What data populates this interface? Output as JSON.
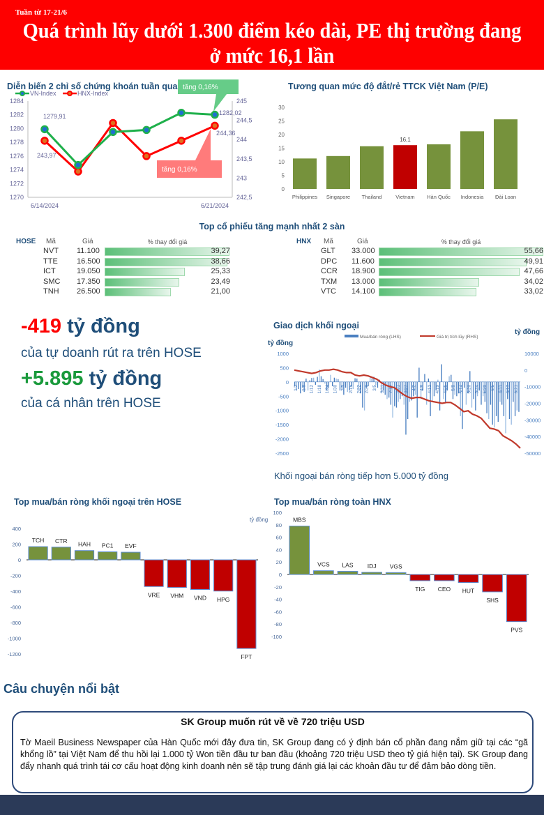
{
  "header": {
    "week": "Tuần từ 17-21/6",
    "title": "Quá trình lũy dưới 1.300 điểm kéo dài, PE thị trường đang ở mức 16,1 lần"
  },
  "colors": {
    "header": "#fe0000",
    "green": "#76923c",
    "red": "#c00000",
    "navy": "#1f4e79",
    "vn_line": "#1fb04b",
    "hnx_line": "#ff0000"
  },
  "chart_data": [
    {
      "type": "line",
      "title": "Diễn biến 2 chỉ số chứng khoán tuần qua",
      "x": [
        "6/14/2024",
        "",
        "",
        "",
        "",
        "6/21/2024"
      ],
      "series": [
        {
          "name": "VN-Index",
          "axis": "left",
          "values": [
            1279.91,
            1274.7,
            1279.5,
            1279.8,
            1282.3,
            1282.02
          ]
        },
        {
          "name": "HNX-Index",
          "axis": "right",
          "values": [
            243.97,
            243.17,
            244.43,
            243.57,
            243.97,
            244.36
          ]
        }
      ],
      "ylim_left": [
        1270,
        1284
      ],
      "yticks_left": [
        "1270",
        "1272",
        "1274",
        "1276",
        "1278",
        "1280",
        "1282",
        "1284"
      ],
      "ylim_right": [
        242.5,
        245
      ],
      "yticks_right": [
        "242,5",
        "243",
        "243,5",
        "244",
        "244,5",
        "245"
      ],
      "labels": {
        "vn_first": "1279,91",
        "vn_last": "1282,02",
        "hnx_first": "243,97",
        "hnx_last": "244,36"
      },
      "callouts": {
        "vn": "tăng 0,16%",
        "hnx": "tăng 0,16%"
      },
      "legend": "top-left"
    },
    {
      "type": "bar",
      "title": "Tương quan mức độ đắt/rẻ TTCK Việt Nam (P/E)",
      "categories": [
        "Philippines",
        "Singapore",
        "Thailand",
        "Vietnam",
        "Hàn Quốc",
        "Indonesia",
        "Đài Loan"
      ],
      "values": [
        11.2,
        12.1,
        15.7,
        16.1,
        16.4,
        21.2,
        25.6
      ],
      "highlight": "Vietnam",
      "highlight_label": "16,1",
      "ylim": [
        0,
        30
      ],
      "yticks": [
        "0",
        "5",
        "10",
        "15",
        "20",
        "25",
        "30"
      ]
    },
    {
      "type": "table",
      "title": "Top cổ phiếu tăng mạnh nhất 2 sàn",
      "headers": [
        "Mã",
        "Giá",
        "% thay đổi giá"
      ],
      "hose": {
        "label": "HOSE",
        "rows": [
          [
            "NVT",
            "11.100",
            "39,27",
            39.27
          ],
          [
            "TTE",
            "16.500",
            "38,66",
            38.66
          ],
          [
            "ICT",
            "19.050",
            "25,33",
            25.33
          ],
          [
            "SMC",
            "17.350",
            "23,49",
            23.49
          ],
          [
            "TNH",
            "26.500",
            "21,00",
            21.0
          ]
        ]
      },
      "hnx": {
        "label": "HNX",
        "rows": [
          [
            "GLT",
            "33.000",
            "55,66",
            55.66
          ],
          [
            "DPC",
            "11.600",
            "49,91",
            49.91
          ],
          [
            "CCR",
            "18.900",
            "47,66",
            47.66
          ],
          [
            "TXM",
            "13.000",
            "34,02",
            34.02
          ],
          [
            "VTC",
            "14.100",
            "33,02",
            33.02
          ]
        ]
      }
    },
    {
      "type": "bar+line",
      "title": "Giao dịch khối ngoại",
      "ylabel_left": "tỷ đồng",
      "ylabel_right": "tỷ đồng",
      "legend": [
        "Mua/bán ròng (LHS)",
        "Giá trị tích lũy (RHS)"
      ],
      "ylim_left": [
        -2500,
        1000
      ],
      "yticks_left": [
        "1000",
        "500",
        "0",
        "-500",
        "-1000",
        "-1500",
        "-2000",
        "-2500"
      ],
      "ylim_right": [
        -50000,
        10000
      ],
      "yticks_right": [
        "10000",
        "0",
        "-10000",
        "-20000",
        "-30000",
        "-40000",
        "-50000"
      ],
      "date_ticks": [
        "1/2",
        "1/8",
        "1/12",
        "1/18",
        "1/24",
        "1/30",
        "2/5",
        "2/16",
        "2/22",
        "2/28",
        "3/5",
        "3/11",
        "3/15",
        "3/21",
        "3/27",
        "4/2",
        "4/8",
        "4/12",
        "4/19",
        "4/25",
        "5/8",
        "5/14",
        "5/20",
        "5/24",
        "5/30",
        "6/5",
        "6/11",
        "6/17",
        "6/21"
      ],
      "daily": [
        -150,
        -300,
        -250,
        -400,
        -200,
        -350,
        120,
        -300,
        60,
        140,
        150,
        -100,
        180,
        440,
        200,
        100,
        -60,
        -300,
        -200,
        250,
        -150,
        150,
        120,
        100,
        -300,
        -250,
        -450,
        -200,
        -350,
        -300,
        -150,
        -250,
        130,
        120,
        -300,
        -400,
        -900,
        -1000,
        -200,
        -150,
        200,
        120,
        180,
        -100,
        -200,
        80,
        -400,
        -300,
        -450,
        -600,
        -550,
        -800,
        -1250,
        -850,
        -900,
        -700,
        -600,
        -500,
        -800,
        -1850,
        -1300,
        -700,
        -650,
        -500,
        -450,
        -1250,
        500,
        -600,
        -300,
        280,
        -800,
        120,
        -1200,
        -700,
        -500,
        -300,
        80,
        -1000,
        620,
        -600,
        -700,
        -300,
        200,
        250,
        -600,
        -450,
        -500,
        -400,
        -1200,
        -1650,
        -200,
        -800,
        -400,
        380,
        -900,
        -600,
        -1000,
        -500,
        -300,
        -800,
        -500,
        -700,
        -1100,
        -1300,
        -800,
        -1500,
        -1600,
        -1200,
        -1400,
        -700,
        -800,
        -1200,
        -1800,
        -600,
        -1300,
        -1500,
        -700,
        -1200,
        -1000,
        -1050
      ],
      "cumulative": [
        0,
        -500,
        -1000,
        -1500,
        -2000,
        -1500,
        -500,
        0,
        0,
        500,
        0,
        -1000,
        -1500,
        -1500,
        -3000,
        -3500,
        -3000,
        -3500,
        -4500,
        -5500,
        -7500,
        -9000,
        -10000,
        -10500,
        -12500,
        -14500,
        -16000,
        -17000,
        -16500,
        -16500,
        -17500,
        -18500,
        -19000,
        -19500,
        -20000,
        -19500,
        -19500,
        -21000,
        -23000,
        -25000,
        -24500,
        -26500,
        -27500,
        -29000,
        -32000,
        -35000,
        -35500,
        -36500,
        -39500,
        -41000,
        -42500,
        -44500,
        -47000
      ],
      "note": "Khối ngoại bán ròng tiếp hơn 5.000 tỷ đồng"
    },
    {
      "type": "bar",
      "title": "Top mua/bán ròng khối ngoại trên HOSE",
      "unit": "tỷ đồng",
      "categories": [
        "TCH",
        "CTR",
        "HAH",
        "PC1",
        "EVF",
        "VRE",
        "VHM",
        "VND",
        "HPG",
        "FPT"
      ],
      "values": [
        168,
        162,
        118,
        102,
        97,
        -340,
        -352,
        -378,
        -398,
        -1130
      ],
      "ylim": [
        -1200,
        400
      ],
      "yticks": [
        "400",
        "200",
        "0",
        "-200",
        "-400",
        "-600",
        "-800",
        "-1000",
        "-1200"
      ]
    },
    {
      "type": "bar",
      "title": "Top mua/bán ròng toàn HNX",
      "categories": [
        "MBS",
        "VCS",
        "LAS",
        "IDJ",
        "VGS",
        "TIG",
        "CEO",
        "HUT",
        "SHS",
        "PVS"
      ],
      "values": [
        78,
        6,
        5,
        3.5,
        3,
        -10,
        -10,
        -13,
        -28,
        -76
      ],
      "ylim": [
        -100,
        100
      ],
      "yticks": [
        "100",
        "80",
        "60",
        "40",
        "20",
        "0",
        "-20",
        "-40",
        "-60",
        "-80",
        "-100"
      ]
    }
  ],
  "highlights": {
    "prop_value": "-419",
    "prop_unit": " tỷ đồng",
    "prop_desc": "của tự doanh rút ra trên HOSE",
    "retail_value": "+5.895",
    "retail_unit": " tỷ đồng",
    "retail_desc": "của cá nhân trên HOSE"
  },
  "story": {
    "heading": "Câu chuyện nổi bật",
    "title": "SK Group muốn rút về về 720 triệu USD",
    "text": "Tờ Maeil Business Newspaper của Hàn Quốc mới đây đưa tin, SK Group đang có ý định bán cổ phần đang nắm giữ tại các “gã khổng lồ” tại Việt Nam để thu hồi lại 1.000 tỷ Won tiền đầu tư ban đầu (khoảng 720 triệu USD theo tỷ giá hiện tại). SK Group đang đẩy nhanh quá trình tái cơ cấu hoạt động kinh doanh nên sẽ tập trung đánh giá lại các khoản đầu tư để đảm bảo dòng tiền."
  }
}
